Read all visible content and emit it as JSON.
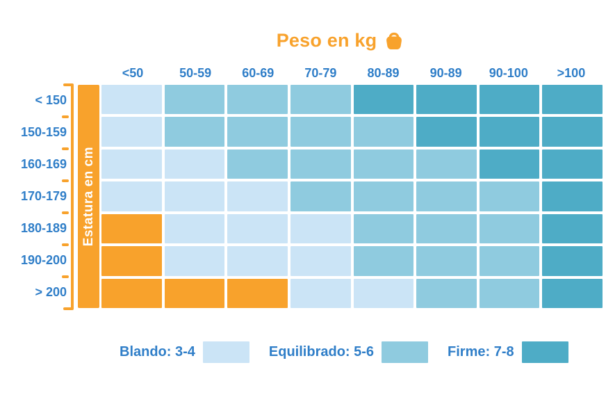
{
  "title": {
    "text": "Peso en kg"
  },
  "colors": {
    "orange": "#F8A22C",
    "label_blue": "#2F7EC8",
    "blando": "#CBE4F6",
    "equilibrado": "#8FCBDF",
    "firme": "#4EACC6",
    "background": "#FFFFFF"
  },
  "x_axis": {
    "title": "Peso en kg",
    "labels": [
      "<50",
      "50-59",
      "60-69",
      "70-79",
      "80-89",
      "90-89",
      "90-100",
      ">100"
    ]
  },
  "y_axis": {
    "title": "Estatura en cm",
    "labels": [
      "< 150",
      "150-159",
      "160-169",
      "170-179",
      "180-189",
      "190-200",
      "> 200"
    ]
  },
  "legend": [
    {
      "label": "Blando: 3-4",
      "color_key": "blando"
    },
    {
      "label": "Equilibrado: 5-6",
      "color_key": "equilibrado"
    },
    {
      "label": "Firme: 7-8",
      "color_key": "firme"
    }
  ],
  "chart_data": {
    "type": "heatmap",
    "title": "Peso en kg",
    "xlabel": "Peso en kg",
    "ylabel": "Estatura en cm",
    "x_categories": [
      "<50",
      "50-59",
      "60-69",
      "70-79",
      "80-89",
      "90-89",
      "90-100",
      ">100"
    ],
    "y_categories": [
      "< 150",
      "150-159",
      "160-169",
      "170-179",
      "180-189",
      "190-200",
      "> 200"
    ],
    "cell_codes": [
      [
        "B",
        "E",
        "E",
        "E",
        "F",
        "F",
        "F",
        "F"
      ],
      [
        "B",
        "E",
        "E",
        "E",
        "E",
        "F",
        "F",
        "F"
      ],
      [
        "B",
        "B",
        "E",
        "E",
        "E",
        "E",
        "F",
        "F"
      ],
      [
        "B",
        "B",
        "B",
        "E",
        "E",
        "E",
        "E",
        "F"
      ],
      [
        "O",
        "B",
        "B",
        "B",
        "E",
        "E",
        "E",
        "F"
      ],
      [
        "O",
        "B",
        "B",
        "B",
        "E",
        "E",
        "E",
        "F"
      ],
      [
        "O",
        "O",
        "O",
        "B",
        "B",
        "E",
        "E",
        "F"
      ]
    ],
    "code_legend": {
      "B": "Blando: 3-4",
      "E": "Equilibrado: 5-6",
      "F": "Firme: 7-8",
      "O": "orange-no-label"
    },
    "palette": {
      "B": "#CBE4F6",
      "E": "#8FCBDF",
      "F": "#4EACC6",
      "O": "#F8A22C"
    },
    "grid": "white 4px gaps between cells",
    "legend_position": "bottom"
  }
}
